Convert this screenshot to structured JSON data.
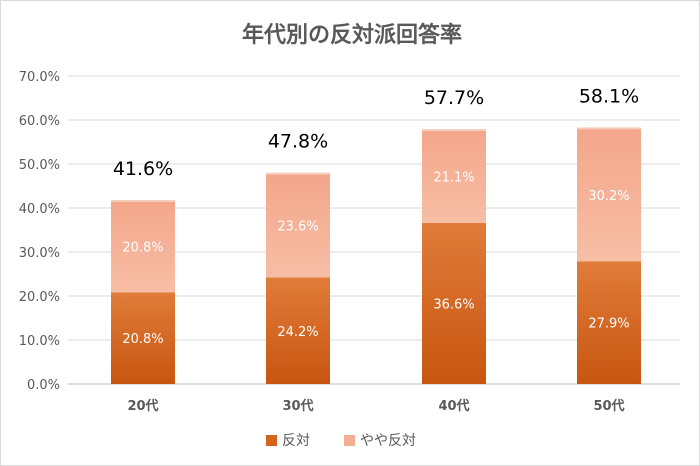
{
  "chart_data": {
    "type": "bar",
    "stacked": true,
    "title": "年代別の反対派回答率",
    "categories": [
      "20代",
      "30代",
      "40代",
      "50代"
    ],
    "series": [
      {
        "name": "反対",
        "values": [
          20.8,
          24.2,
          36.6,
          27.9
        ],
        "color": "#d4651c"
      },
      {
        "name": "やや反対",
        "values": [
          20.8,
          23.6,
          21.1,
          30.2
        ],
        "color": "#f4ae93"
      }
    ],
    "data_labels": [
      [
        "20.8%",
        "24.2%",
        "36.6%",
        "27.9%"
      ],
      [
        "20.8%",
        "23.6%",
        "21.1%",
        "30.2%"
      ]
    ],
    "totals": [
      "41.6%",
      "47.8%",
      "57.7%",
      "58.1%"
    ],
    "y_ticks": [
      "0.0%",
      "10.0%",
      "20.0%",
      "30.0%",
      "40.0%",
      "50.0%",
      "60.0%",
      "70.0%"
    ],
    "ylim": [
      0,
      70
    ],
    "grid": true,
    "legend_position": "bottom"
  }
}
